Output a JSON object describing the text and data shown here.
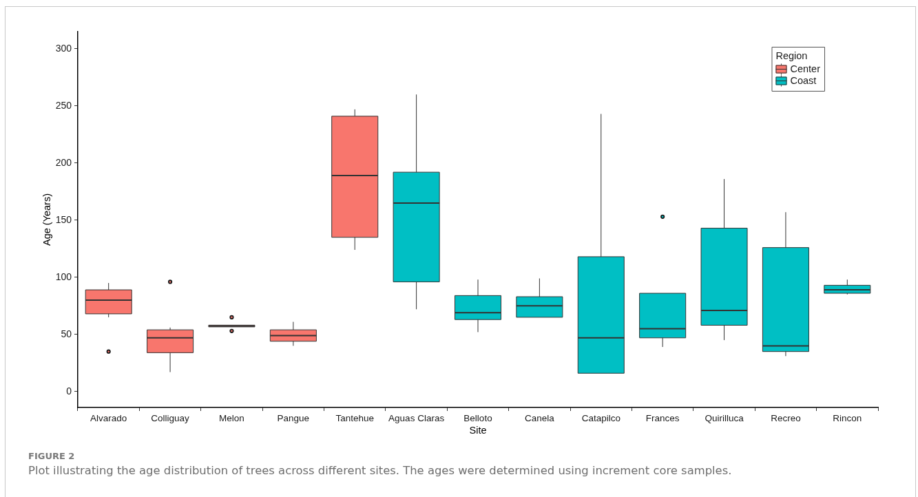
{
  "chart_data": {
    "type": "box",
    "xlabel": "Site",
    "ylabel": "Age (Years)",
    "legend_title": "Region",
    "categories": [
      "Alvarado",
      "Colliguay",
      "Melon",
      "Pangue",
      "Tantehue",
      "Aguas Claras",
      "Belloto",
      "Canela",
      "Catapilco",
      "Frances",
      "Quirilluca",
      "Recreo",
      "Rincon"
    ],
    "series": [
      {
        "name": "Center",
        "color": "#f8766d",
        "boxes": [
          {
            "low": 65,
            "q1": 68,
            "median": 80,
            "q3": 89,
            "high": 95,
            "outliers": [
              35
            ]
          },
          {
            "low": 17,
            "q1": 34,
            "median": 47,
            "q3": 54,
            "high": 56,
            "outliers": [
              96
            ]
          },
          {
            "low": 56.6,
            "q1": 56.6,
            "median": 57.3,
            "q3": 58.1,
            "high": 58.1,
            "outliers": [
              65,
              53
            ]
          },
          {
            "low": 40,
            "q1": 44,
            "median": 49,
            "q3": 54,
            "high": 61
          },
          {
            "low": 124,
            "q1": 135,
            "median": 189,
            "q3": 241,
            "high": 247
          },
          null,
          null,
          null,
          null,
          null,
          null,
          null,
          null
        ]
      },
      {
        "name": "Coast",
        "color": "#00bfc4",
        "boxes": [
          null,
          null,
          null,
          null,
          null,
          {
            "low": 72,
            "q1": 96,
            "median": 165,
            "q3": 192,
            "high": 260
          },
          {
            "low": 52,
            "q1": 63,
            "median": 69,
            "q3": 84,
            "high": 98
          },
          {
            "low": 65,
            "q1": 65,
            "median": 75,
            "q3": 83,
            "high": 99
          },
          {
            "low": 16,
            "q1": 16,
            "median": 47,
            "q3": 118,
            "high": 243
          },
          {
            "low": 39,
            "q1": 47,
            "median": 55,
            "q3": 86,
            "high": 86,
            "outliers": [
              153
            ]
          },
          {
            "low": 45,
            "q1": 58,
            "median": 71,
            "q3": 143,
            "high": 186
          },
          {
            "low": 31,
            "q1": 35,
            "median": 40,
            "q3": 126,
            "high": 157
          },
          {
            "low": 85,
            "q1": 86,
            "median": 89,
            "q3": 93,
            "high": 98
          }
        ]
      }
    ],
    "ylim": [
      -14,
      315
    ],
    "yticks": [
      0,
      50,
      100,
      150,
      200,
      250,
      300
    ],
    "grid": false,
    "legend": "top right",
    "annotations": [
      "FIGURE 2",
      "Plot illustrating the age distribution of trees across different sites. The ages were determined using increment core samples."
    ]
  }
}
